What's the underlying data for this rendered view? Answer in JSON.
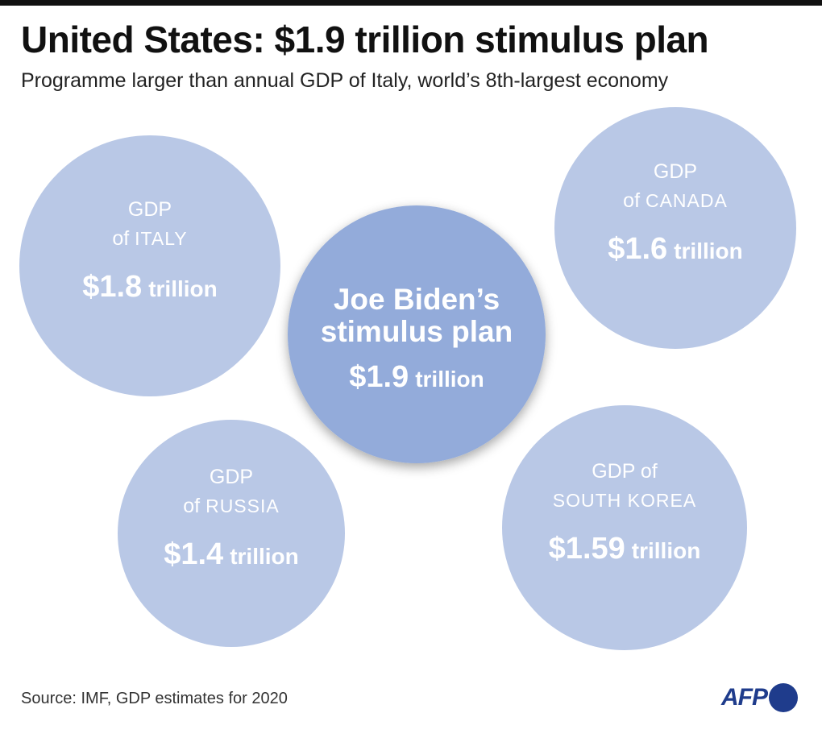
{
  "header": {
    "title": "United States: $1.9 trillion stimulus plan",
    "subtitle": "Programme larger than annual GDP of Italy, world’s 8th-largest economy"
  },
  "footer": {
    "source": "Source: IMF, GDP estimates for 2020",
    "logo": "AFP"
  },
  "colors": {
    "bubble": "#b9c8e6",
    "highlight": "#93abda",
    "text_on_bubble": "#ffffff",
    "logo": "#1f3c8c"
  },
  "chart_data": {
    "type": "bubble",
    "unit": "trillion",
    "items": [
      {
        "id": "italy",
        "line1": "GDP",
        "line2_prefix": "of ",
        "line2": "Italy",
        "amount": "$1.8",
        "unit": "trillion",
        "value": 1.8
      },
      {
        "id": "canada",
        "line1": "GDP",
        "line2_prefix": "of ",
        "line2": "Canada",
        "amount": "$1.6",
        "unit": "trillion",
        "value": 1.6
      },
      {
        "id": "biden",
        "line1": "Joe Biden’s",
        "line2_prefix": "",
        "line2": "stimulus plan",
        "amount": "$1.9",
        "unit": "trillion",
        "value": 1.9,
        "highlight": true
      },
      {
        "id": "russia",
        "line1": "GDP",
        "line2_prefix": "of ",
        "line2": "Russia",
        "amount": "$1.4",
        "unit": "trillion",
        "value": 1.4
      },
      {
        "id": "korea",
        "line1": "GDP of",
        "line2_prefix": "",
        "line2": "South Korea",
        "amount": "$1.59",
        "unit": "trillion",
        "value": 1.59
      }
    ]
  }
}
